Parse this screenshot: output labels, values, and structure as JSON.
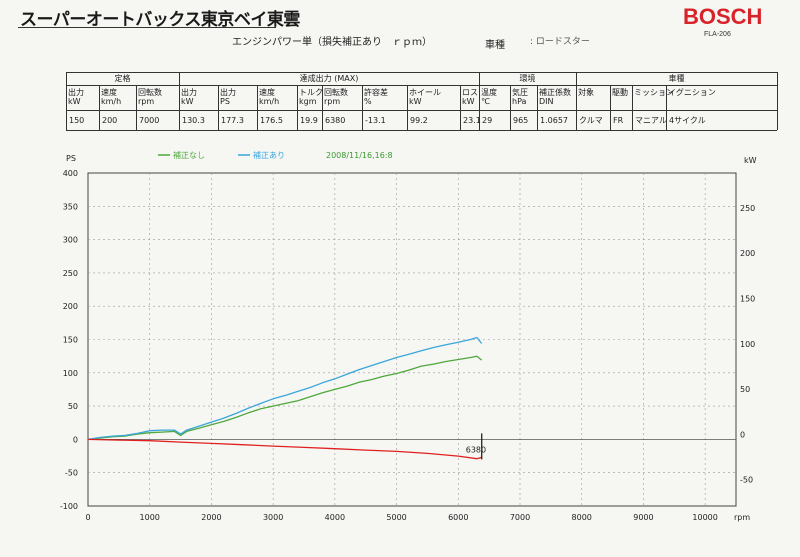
{
  "header": {
    "company": "スーパーオートバックス東京ベイ東雲",
    "brand": "BOSCH",
    "model": "FLA-206",
    "report_title": "エンジンパワー単（損失補正あり　ｒｐｍ）",
    "vehicle_label": "車種",
    "vehicle_value": ": ロードスター"
  },
  "spec_table": {
    "groups": [
      "定格",
      "達成出力 (MAX)",
      "環境",
      "車種"
    ],
    "columns": [
      {
        "label": "出力\nkW",
        "value": "150"
      },
      {
        "label": "速度\nkm/h",
        "value": "200"
      },
      {
        "label": "回転数\nrpm",
        "value": "7000"
      },
      {
        "label": "出力\nkW",
        "value": "130.3"
      },
      {
        "label": "出力\nPS",
        "value": "177.3"
      },
      {
        "label": "速度\nkm/h",
        "value": "176.5"
      },
      {
        "label": "トルク\nkgm",
        "value": "19.9"
      },
      {
        "label": "回転数\nrpm",
        "value": "6380"
      },
      {
        "label": "許容差\n%",
        "value": "-13.1"
      },
      {
        "label": "ホイール\nkW",
        "value": "99.2"
      },
      {
        "label": "ロス\nkW",
        "value": "23.1"
      },
      {
        "label": "温度\n℃",
        "value": "29"
      },
      {
        "label": "気圧\nhPa",
        "value": "965"
      },
      {
        "label": "補正係数\nDIN",
        "value": "1.0657"
      },
      {
        "label": "対象",
        "value": "クルマ"
      },
      {
        "label": "駆動",
        "value": "FR"
      },
      {
        "label": "ミッション",
        "value": "マニアル"
      },
      {
        "label": "イグニション",
        "value": "4サイクル"
      }
    ]
  },
  "chart_data": {
    "type": "line",
    "xlabel": "rpm",
    "ylabel_left": "PS",
    "ylabel_right": "kW",
    "xlim": [
      0,
      10500
    ],
    "ylim_left": [
      -100,
      400
    ],
    "ylim_right": [
      -73.5,
      294
    ],
    "x_ticks": [
      0,
      1000,
      2000,
      3000,
      4000,
      5000,
      6000,
      7000,
      8000,
      9000,
      10000
    ],
    "y_ticks_left": [
      -100,
      -50,
      0,
      50,
      100,
      150,
      200,
      250,
      300,
      350,
      400
    ],
    "y_ticks_right": [
      -50,
      0,
      50,
      100,
      150,
      200,
      250
    ],
    "grid": true,
    "legend": [
      {
        "name": "補正なし",
        "color": "#4fa83c"
      },
      {
        "name": "補正あり",
        "color": "#3aa6dc"
      }
    ],
    "timestamp": "2008/11/16,16:8",
    "annotation": {
      "text": "6380",
      "x": 6380
    },
    "series": [
      {
        "name": "補正なし",
        "color": "#4fa83c",
        "axis": "left",
        "x": [
          0,
          200,
          400,
          600,
          800,
          1000,
          1200,
          1400,
          1500,
          1600,
          1800,
          2000,
          2200,
          2400,
          2600,
          2800,
          3000,
          3200,
          3400,
          3600,
          3800,
          4000,
          4200,
          4400,
          4600,
          4800,
          5000,
          5200,
          5400,
          5600,
          5800,
          6000,
          6200,
          6300,
          6380
        ],
        "y": [
          0,
          2,
          4,
          5,
          8,
          10,
          11,
          12,
          6,
          12,
          17,
          22,
          27,
          33,
          40,
          46,
          50,
          54,
          58,
          64,
          70,
          75,
          80,
          86,
          90,
          95,
          99,
          104,
          110,
          113,
          117,
          120,
          123,
          125,
          119
        ]
      },
      {
        "name": "補正あり",
        "color": "#3aa6dc",
        "axis": "left",
        "x": [
          0,
          200,
          400,
          600,
          800,
          1000,
          1200,
          1400,
          1500,
          1600,
          1800,
          2000,
          2200,
          2400,
          2600,
          2800,
          3000,
          3200,
          3400,
          3600,
          3800,
          4000,
          4200,
          4400,
          4600,
          4800,
          5000,
          5200,
          5400,
          5600,
          5800,
          6000,
          6200,
          6300,
          6380
        ],
        "y": [
          0,
          3,
          5,
          6,
          9,
          13,
          14,
          14,
          8,
          14,
          20,
          26,
          32,
          39,
          47,
          54,
          61,
          66,
          72,
          78,
          85,
          91,
          98,
          105,
          111,
          117,
          123,
          128,
          133,
          138,
          142,
          146,
          150,
          153,
          144
        ]
      },
      {
        "name": "ロス",
        "color": "#e02020",
        "axis": "left",
        "x": [
          0,
          500,
          1000,
          1500,
          2000,
          2500,
          3000,
          3500,
          4000,
          4500,
          5000,
          5500,
          6000,
          6300,
          6380
        ],
        "y": [
          0,
          -1,
          -2,
          -4,
          -6,
          -8,
          -10,
          -12,
          -14,
          -16,
          -18,
          -21,
          -25,
          -29,
          -27
        ]
      }
    ]
  }
}
